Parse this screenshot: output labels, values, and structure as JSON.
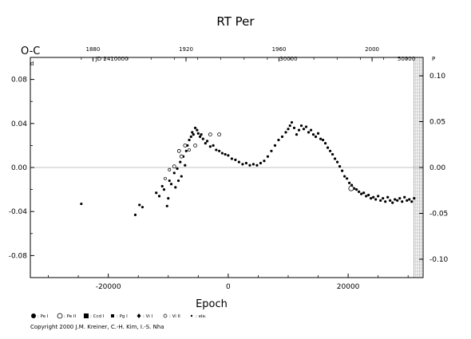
{
  "chart_data": {
    "type": "scatter",
    "title": "RT Per",
    "ylabel": "O-C",
    "y_unit_mark": "d",
    "xlabel": "Epoch",
    "xlim": [
      -33000,
      32500
    ],
    "ylim": [
      -0.1,
      0.1
    ],
    "x_ticks": [
      -20000,
      0,
      20000
    ],
    "x_tick_labels": [
      "-20000",
      "0",
      "20000"
    ],
    "y_ticks": [
      -0.08,
      -0.04,
      0.0,
      0.04,
      0.08
    ],
    "y_tick_labels": [
      "-0.08",
      "-0.04",
      "0.00",
      "0.04",
      "0.08"
    ],
    "right_axis": {
      "ticks": [
        -0.1,
        -0.05,
        0.0,
        0.05,
        0.1
      ],
      "tick_labels": [
        "-0.10",
        "-0.05",
        "0.00",
        "0.05",
        "0.10"
      ],
      "unit_mark": "P"
    },
    "top_axis_years": {
      "ticks_epoch": [
        -22560,
        -7040,
        8470,
        23990
      ],
      "labels": [
        "1880",
        "1920",
        "1960",
        "2000"
      ]
    },
    "top_axis_jd": {
      "ticks_epoch": [
        -19400,
        10060,
        29710
      ],
      "labels": [
        "JD 2410000",
        "30000",
        "50000"
      ]
    },
    "zero_line": true,
    "grid": false,
    "hatched_region_epoch": [
      31000,
      35300
    ],
    "legend_placement": "bottom",
    "legend": [
      {
        "symbol": "filled-circle-large",
        "label": ": Pe I"
      },
      {
        "symbol": "open-circle-large",
        "label": ": Pe II"
      },
      {
        "symbol": "filled-square",
        "label": ": Ccd I"
      },
      {
        "symbol": "filled-square-small",
        "label": ": Pg I"
      },
      {
        "symbol": "filled-diamond",
        "label": ": Vi I"
      },
      {
        "symbol": "open-circle-small",
        "label": ": Vi II"
      },
      {
        "symbol": "dot",
        "label": ": ele."
      }
    ],
    "series": [
      {
        "name": "Pe I",
        "points": [
          [
            -24500,
            -0.033
          ],
          [
            -15500,
            -0.043
          ],
          [
            -14800,
            -0.034
          ],
          [
            -14300,
            -0.036
          ],
          [
            -12000,
            -0.023
          ],
          [
            -11500,
            -0.026
          ],
          [
            -11000,
            -0.017
          ],
          [
            -10700,
            -0.02
          ],
          [
            -10200,
            -0.035
          ],
          [
            -10000,
            -0.028
          ],
          [
            -9800,
            -0.012
          ],
          [
            -9500,
            -0.015
          ],
          [
            -9000,
            -0.005
          ],
          [
            -8800,
            -0.018
          ],
          [
            -8500,
            -0.001
          ],
          [
            -8300,
            -0.012
          ],
          [
            -8000,
            0.005
          ],
          [
            -7800,
            -0.008
          ],
          [
            -7500,
            0.01
          ],
          [
            -7200,
            0.002
          ],
          [
            -7000,
            0.015
          ],
          [
            -6800,
            0.02
          ],
          [
            -6500,
            0.025
          ],
          [
            -6200,
            0.028
          ],
          [
            -6000,
            0.032
          ],
          [
            -5800,
            0.03
          ],
          [
            -5500,
            0.036
          ],
          [
            -5200,
            0.034
          ],
          [
            -5000,
            0.031
          ],
          [
            -4700,
            0.028
          ],
          [
            -4500,
            0.03
          ],
          [
            -4200,
            0.026
          ],
          [
            -3800,
            0.022
          ],
          [
            -3500,
            0.024
          ],
          [
            -3000,
            0.019
          ],
          [
            -2500,
            0.02
          ],
          [
            -2000,
            0.016
          ],
          [
            -1500,
            0.015
          ],
          [
            -1000,
            0.013
          ],
          [
            -500,
            0.012
          ],
          [
            0,
            0.011
          ],
          [
            600,
            0.008
          ],
          [
            1200,
            0.007
          ],
          [
            1800,
            0.005
          ],
          [
            2400,
            0.003
          ],
          [
            3000,
            0.004
          ],
          [
            3600,
            0.002
          ],
          [
            4200,
            0.003
          ],
          [
            4800,
            0.002
          ],
          [
            5400,
            0.004
          ],
          [
            6000,
            0.006
          ],
          [
            6600,
            0.01
          ],
          [
            7200,
            0.015
          ],
          [
            7800,
            0.02
          ],
          [
            8400,
            0.025
          ],
          [
            9000,
            0.028
          ],
          [
            9600,
            0.032
          ],
          [
            10000,
            0.035
          ],
          [
            10300,
            0.038
          ],
          [
            10600,
            0.041
          ],
          [
            11000,
            0.036
          ],
          [
            11400,
            0.03
          ],
          [
            11800,
            0.034
          ],
          [
            12200,
            0.038
          ],
          [
            12600,
            0.035
          ],
          [
            13000,
            0.037
          ],
          [
            13400,
            0.032
          ],
          [
            13800,
            0.034
          ],
          [
            14200,
            0.03
          ],
          [
            14600,
            0.028
          ],
          [
            15000,
            0.031
          ],
          [
            15400,
            0.026
          ],
          [
            15800,
            0.025
          ],
          [
            16200,
            0.022
          ],
          [
            16600,
            0.018
          ],
          [
            17000,
            0.015
          ],
          [
            17400,
            0.012
          ],
          [
            17800,
            0.008
          ],
          [
            18200,
            0.005
          ],
          [
            18600,
            0.001
          ],
          [
            19000,
            -0.003
          ],
          [
            19400,
            -0.008
          ],
          [
            19800,
            -0.01
          ],
          [
            20200,
            -0.014
          ],
          [
            20600,
            -0.016
          ],
          [
            21000,
            -0.019
          ],
          [
            21400,
            -0.02
          ],
          [
            21800,
            -0.022
          ],
          [
            22200,
            -0.024
          ],
          [
            22600,
            -0.023
          ],
          [
            23000,
            -0.026
          ],
          [
            23400,
            -0.025
          ],
          [
            23800,
            -0.028
          ],
          [
            24200,
            -0.027
          ],
          [
            24600,
            -0.029
          ],
          [
            25000,
            -0.026
          ],
          [
            25400,
            -0.03
          ],
          [
            25800,
            -0.028
          ],
          [
            26200,
            -0.031
          ],
          [
            26600,
            -0.027
          ],
          [
            27000,
            -0.03
          ],
          [
            27400,
            -0.032
          ],
          [
            27800,
            -0.029
          ],
          [
            28200,
            -0.03
          ],
          [
            28600,
            -0.028
          ],
          [
            29000,
            -0.031
          ],
          [
            29400,
            -0.027
          ],
          [
            29800,
            -0.03
          ],
          [
            30200,
            -0.029
          ],
          [
            30600,
            -0.031
          ],
          [
            31000,
            -0.028
          ]
        ]
      },
      {
        "name": "Pe II",
        "points": [
          [
            -9000,
            0.001
          ],
          [
            -8200,
            0.015
          ],
          [
            -7800,
            0.01
          ],
          [
            -7200,
            0.02
          ],
          [
            -5500,
            0.02
          ],
          [
            -3000,
            0.03
          ],
          [
            -1500,
            0.03
          ],
          [
            20500,
            -0.019
          ]
        ]
      },
      {
        "name": "Vi II",
        "points": [
          [
            -10500,
            -0.01
          ],
          [
            -9800,
            -0.002
          ],
          [
            -6500,
            0.016
          ]
        ]
      }
    ]
  },
  "footer": {
    "copyright": "Copyright 2000 J.M. Kreiner, C.-H. Kim, I.-S. Nha"
  }
}
